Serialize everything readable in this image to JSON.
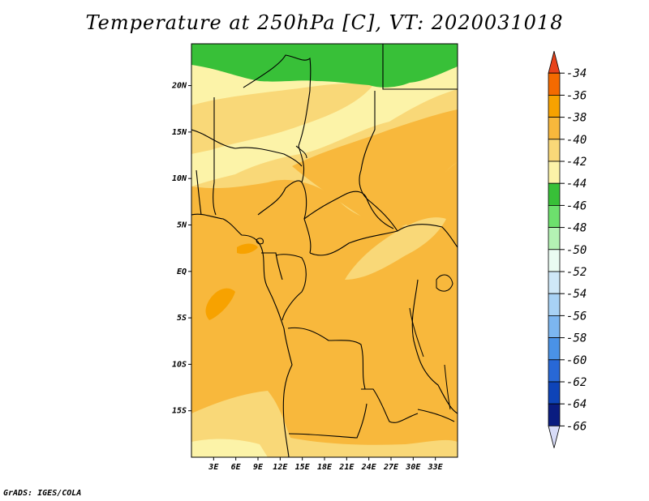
{
  "title": "Temperature at 250hPa [C], VT: 2020031018",
  "credit": "GrADS: IGES/COLA",
  "map": {
    "lat_range": [
      -20,
      24.5
    ],
    "lon_range": [
      0,
      36
    ],
    "lat_ticks": [
      {
        "value": 20,
        "label": "20N"
      },
      {
        "value": 15,
        "label": "15N"
      },
      {
        "value": 10,
        "label": "10N"
      },
      {
        "value": 5,
        "label": "5N"
      },
      {
        "value": 0,
        "label": "EQ"
      },
      {
        "value": -5,
        "label": "5S"
      },
      {
        "value": -10,
        "label": "10S"
      },
      {
        "value": -15,
        "label": "15S"
      }
    ],
    "lon_ticks": [
      {
        "value": 3,
        "label": "3E"
      },
      {
        "value": 6,
        "label": "6E"
      },
      {
        "value": 9,
        "label": "9E"
      },
      {
        "value": 12,
        "label": "12E"
      },
      {
        "value": 15,
        "label": "15E"
      },
      {
        "value": 18,
        "label": "18E"
      },
      {
        "value": 21,
        "label": "21E"
      },
      {
        "value": 24,
        "label": "24E"
      },
      {
        "value": 27,
        "label": "27E"
      },
      {
        "value": 30,
        "label": "30E"
      },
      {
        "value": 33,
        "label": "33E"
      }
    ]
  },
  "colorbar": {
    "labels": [
      "-34",
      "-36",
      "-38",
      "-40",
      "-42",
      "-44",
      "-46",
      "-48",
      "-50",
      "-52",
      "-54",
      "-56",
      "-58",
      "-60",
      "-62",
      "-64",
      "-66"
    ],
    "colors": [
      "#e8421a",
      "#f46a00",
      "#f7a200",
      "#f8b83c",
      "#f9d878",
      "#fcf3a8",
      "#38c038",
      "#6de06d",
      "#b4f2b4",
      "#eafcf2",
      "#cfe8f8",
      "#a8d2f5",
      "#7cb6f0",
      "#4a92e6",
      "#2868d6",
      "#0e44b8",
      "#0a1c80",
      "#d8dcf8"
    ]
  }
}
